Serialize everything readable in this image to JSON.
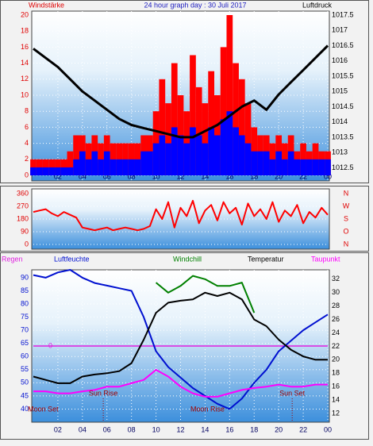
{
  "chart_data": [
    {
      "type": "bar-line",
      "title": "24 hour graph day : 30 Juli 2017",
      "y_label": "Windstärke",
      "y2_label": "Luftdruck",
      "x": [
        0,
        0.5,
        1,
        1.5,
        2,
        2.5,
        3,
        3.5,
        4,
        4.5,
        5,
        5.5,
        6,
        6.5,
        7,
        7.5,
        8,
        8.5,
        9,
        9.5,
        10,
        10.5,
        11,
        11.5,
        12,
        12.5,
        13,
        13.5,
        14,
        14.5,
        15,
        15.5,
        16,
        16.5,
        17,
        17.5,
        18,
        18.5,
        19,
        19.5,
        20,
        20.5,
        21,
        21.5,
        22,
        22.5,
        23,
        23.5,
        24
      ],
      "xlim": [
        0,
        24
      ],
      "xticks": [
        {
          "value": 2,
          "label": "02"
        },
        {
          "value": 4,
          "label": "04"
        },
        {
          "value": 6,
          "label": "06"
        },
        {
          "value": 8,
          "label": "08"
        },
        10,
        12,
        14,
        16,
        18,
        20,
        22,
        {
          "value": 24,
          "label": "00"
        }
      ],
      "ylim": [
        0,
        20
      ],
      "yticks": [
        0,
        2,
        4,
        6,
        8,
        10,
        12,
        14,
        16,
        18,
        20
      ],
      "y2lim": [
        1012.25,
        1017.5
      ],
      "y2ticks": [
        1012.5,
        1013,
        1013.5,
        1014,
        1014.5,
        1015,
        1015.5,
        1016,
        1016.5,
        1017,
        1017.5
      ],
      "grid": true,
      "series": [
        {
          "color": "#ff0000",
          "values": [
            2,
            2,
            2,
            2,
            2,
            2,
            3,
            5,
            5,
            4,
            5,
            4,
            5,
            4,
            4,
            4,
            4,
            4,
            5,
            5,
            8,
            12,
            9,
            14,
            10,
            8,
            15,
            11,
            9,
            13,
            10,
            16,
            20,
            14,
            12,
            9,
            6,
            5,
            5,
            4,
            5,
            4,
            5,
            3,
            4,
            3,
            4,
            3,
            3
          ]
        },
        {
          "color": "#0000ff",
          "values": [
            1,
            1,
            1,
            1,
            1,
            1,
            1,
            2,
            3,
            2,
            3,
            2,
            3,
            2,
            2,
            2,
            2,
            2,
            3,
            3,
            4,
            5,
            4,
            6,
            5,
            4,
            6,
            5,
            4,
            6,
            5,
            7,
            8,
            6,
            5,
            4,
            3,
            3,
            3,
            2,
            3,
            2,
            3,
            2,
            2,
            2,
            2,
            2,
            2
          ]
        },
        {
          "color": "#000000",
          "axis": "y2",
          "x": [
            0,
            1,
            2,
            3,
            4,
            5,
            6,
            7,
            8,
            9,
            10,
            11,
            12,
            13,
            14,
            15,
            16,
            17,
            18,
            19,
            20,
            21,
            22,
            23,
            24
          ],
          "values": [
            1016.4,
            1016.1,
            1015.8,
            1015.4,
            1015.0,
            1014.7,
            1014.4,
            1014.1,
            1013.9,
            1013.8,
            1013.7,
            1013.6,
            1013.5,
            1013.5,
            1013.7,
            1013.9,
            1014.2,
            1014.5,
            1014.7,
            1014.4,
            1014.9,
            1015.3,
            1015.7,
            1016.1,
            1016.5
          ]
        }
      ]
    },
    {
      "type": "line",
      "x": [
        0,
        0.5,
        1,
        1.5,
        2,
        2.5,
        3,
        3.5,
        4,
        4.5,
        5,
        5.5,
        6,
        6.5,
        7,
        7.5,
        8,
        8.5,
        9,
        9.5,
        10,
        10.5,
        11,
        11.5,
        12,
        12.5,
        13,
        13.5,
        14,
        14.5,
        15,
        15.5,
        16,
        16.5,
        17,
        17.5,
        18,
        18.5,
        19,
        19.5,
        20,
        20.5,
        21,
        21.5,
        22,
        22.5,
        23,
        23.5,
        24
      ],
      "xlim": [
        0,
        24
      ],
      "ylim": [
        0,
        360
      ],
      "yticks": [
        0,
        90,
        180,
        270,
        360
      ],
      "y2lim": [
        0,
        360
      ],
      "y2ticks": [
        {
          "value": 360,
          "label": "N"
        },
        {
          "value": 270,
          "label": "W"
        },
        {
          "value": 180,
          "label": "S"
        },
        {
          "value": 90,
          "label": "O"
        },
        {
          "value": 0,
          "label": "N"
        }
      ],
      "grid": true,
      "series": [
        {
          "color": "#ff0000",
          "values": [
            230,
            240,
            250,
            220,
            200,
            230,
            210,
            190,
            120,
            110,
            100,
            110,
            120,
            100,
            110,
            120,
            110,
            100,
            110,
            130,
            250,
            180,
            300,
            120,
            260,
            200,
            310,
            150,
            240,
            280,
            170,
            300,
            220,
            260,
            140,
            290,
            200,
            250,
            180,
            300,
            160,
            240,
            200,
            280,
            150,
            230,
            190,
            260,
            210
          ]
        }
      ]
    },
    {
      "type": "line",
      "x": [
        0,
        1,
        2,
        3,
        4,
        5,
        6,
        7,
        8,
        9,
        10,
        11,
        12,
        13,
        14,
        15,
        16,
        17,
        18,
        19,
        20,
        21,
        22,
        23,
        24
      ],
      "xlim": [
        0,
        24
      ],
      "xticks": [
        {
          "value": 2,
          "label": "02"
        },
        {
          "value": 4,
          "label": "04"
        },
        {
          "value": 6,
          "label": "06"
        },
        {
          "value": 8,
          "label": "08"
        },
        10,
        12,
        14,
        16,
        18,
        20,
        22,
        {
          "value": 24,
          "label": "00"
        }
      ],
      "ylim": [
        35,
        93
      ],
      "yticks": [
        40,
        45,
        50,
        55,
        60,
        65,
        70,
        75,
        80,
        85,
        90
      ],
      "y2lim": [
        10.7,
        33.4
      ],
      "y2ticks": [
        12,
        14,
        16,
        18,
        20,
        22,
        24,
        26,
        28,
        30,
        32
      ],
      "y3lim": [
        -1,
        1
      ],
      "y3ticks": [
        0
      ],
      "grid": true,
      "series": [
        {
          "name": "Regen",
          "color": "#e020e0",
          "axis": "y3",
          "values": [
            0,
            0,
            0,
            0,
            0,
            0,
            0,
            0,
            0,
            0,
            0,
            0,
            0,
            0,
            0,
            0,
            0,
            0,
            0,
            0,
            0,
            0,
            0,
            0,
            0
          ]
        },
        {
          "name": "Luftfeuchte",
          "color": "#0010d0",
          "values": [
            91,
            90,
            92,
            93,
            90,
            88,
            87,
            86,
            85,
            75,
            62,
            56,
            52,
            48,
            45,
            42,
            40,
            44,
            50,
            55,
            62,
            66,
            70,
            73,
            76
          ]
        },
        {
          "name": "Windchill",
          "color": "#008000",
          "axis": "y2",
          "values": [
            null,
            null,
            null,
            null,
            null,
            null,
            null,
            null,
            null,
            null,
            31.5,
            30,
            31,
            32.5,
            32,
            31,
            31,
            31.5,
            27,
            null,
            null,
            null,
            null,
            null,
            null
          ]
        },
        {
          "name": "Temperatur",
          "color": "#000000",
          "axis": "y2",
          "values": [
            17.5,
            17,
            16.5,
            16.5,
            17.5,
            17.8,
            18,
            18.3,
            19.5,
            23,
            27,
            28.5,
            28.8,
            29,
            30,
            29.5,
            30,
            29,
            26,
            25,
            23,
            21.5,
            20.5,
            20,
            20
          ]
        },
        {
          "name": "Taupunkt",
          "color": "#ff00ff",
          "axis": "y2",
          "values": [
            15.3,
            15.3,
            15,
            15,
            15.3,
            15.5,
            16,
            16,
            16.5,
            17,
            18.5,
            17.5,
            16,
            15,
            14.5,
            14.5,
            15,
            15.5,
            15.8,
            16,
            16.3,
            16,
            16,
            16.3,
            16.3
          ]
        }
      ],
      "annotations": [
        {
          "text": "Moon Set",
          "x": 0.8
        },
        {
          "text": "Sun Rise",
          "x": 5.7
        },
        {
          "text": "Moon Rise",
          "x": 14.2
        },
        {
          "text": "Sun Set",
          "x": 21.1
        }
      ]
    }
  ]
}
